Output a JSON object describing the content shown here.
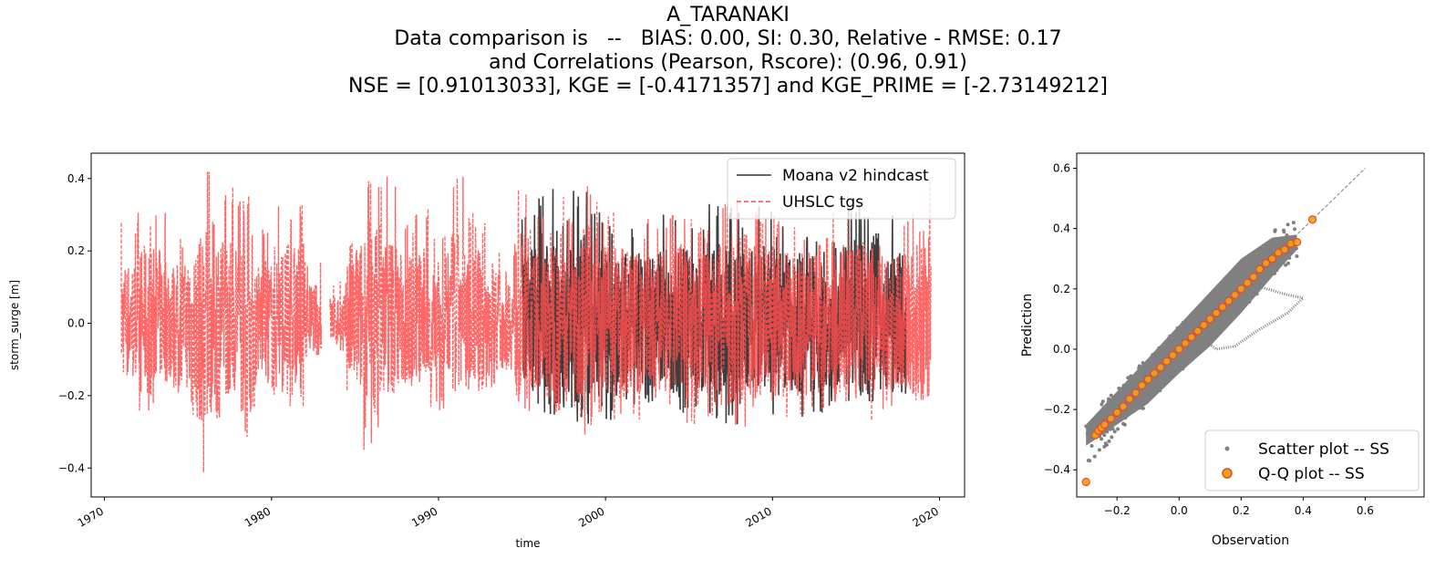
{
  "title": {
    "line1": "A_TARANAKI",
    "line2": "Data comparison is   --   BIAS: 0.00, SI: 0.30, Relative - RMSE: 0.17",
    "line3": "and Correlations (Pearson, Rscore): (0.96, 0.91)",
    "line4": "NSE = [0.91013033], KGE = [-0.4171357] and KGE_PRIME = [-2.73149212]"
  },
  "chart_data": [
    {
      "type": "line",
      "xlabel": "time",
      "ylabel": "storm_surge [m]",
      "xlim": [
        1969.2,
        2021.5
      ],
      "ylim": [
        -0.48,
        0.47
      ],
      "xticks": [
        "1970",
        "1980",
        "1990",
        "2000",
        "2010",
        "2020"
      ],
      "yticks": [
        "−0.4",
        "−0.2",
        "0.0",
        "0.2",
        "0.4"
      ],
      "legend_position": "top-right",
      "series": [
        {
          "name": "Moana v2 hindcast",
          "color": "#333333",
          "linestyle": "solid",
          "x": [
            1995.0,
            1996.0,
            1997.0,
            1998.0,
            1999.0,
            2000.0,
            2001.0,
            2002.0,
            2003.0,
            2004.0,
            2005.0,
            2006.0,
            2007.0,
            2008.0,
            2009.0,
            2010.0,
            2011.0,
            2012.0,
            2013.0,
            2014.0,
            2015.0,
            2016.0,
            2017.0
          ],
          "max": [
            0.3,
            0.38,
            0.3,
            0.37,
            0.31,
            0.27,
            0.27,
            0.28,
            0.31,
            0.3,
            0.27,
            0.33,
            0.34,
            0.3,
            0.33,
            0.28,
            0.26,
            0.26,
            0.34,
            0.36,
            0.33,
            0.25,
            0.32
          ],
          "min": [
            -0.23,
            -0.26,
            -0.24,
            -0.28,
            -0.23,
            -0.27,
            -0.24,
            -0.22,
            -0.23,
            -0.27,
            -0.24,
            -0.27,
            -0.28,
            -0.23,
            -0.24,
            -0.26,
            -0.26,
            -0.27,
            -0.23,
            -0.24,
            -0.27,
            -0.24,
            -0.24
          ]
        },
        {
          "name": "UHSLC tgs",
          "color": "#ff4c4c",
          "linestyle": "dashed",
          "x": [
            1971.0,
            1972.0,
            1973.0,
            1974.0,
            1975.0,
            1976.0,
            1977.0,
            1978.0,
            1979.0,
            1980.0,
            1981.0,
            1982.0,
            1983.5,
            1984.5,
            1985.5,
            1986.5,
            1987.5,
            1988.5,
            1989.5,
            1990.5,
            1991.5,
            1992.5,
            1993.5,
            1994.5,
            1995.5,
            1996.5,
            1997.5,
            1998.5,
            1999.5,
            2000.5,
            2001.5,
            2002.5,
            2003.5,
            2004.5,
            2005.5,
            2006.5,
            2007.5,
            2008.5,
            2009.5,
            2010.5,
            2011.5,
            2012.5,
            2013.5,
            2014.5,
            2015.5,
            2016.5,
            2017.5,
            2018.5
          ],
          "max": [
            0.28,
            0.31,
            0.35,
            0.24,
            0.26,
            0.43,
            0.38,
            0.36,
            0.27,
            0.35,
            0.33,
            0.18,
            0.12,
            0.36,
            0.4,
            0.43,
            0.29,
            0.33,
            0.25,
            0.41,
            0.31,
            0.28,
            0.23,
            0.38,
            0.3,
            0.39,
            0.31,
            0.39,
            0.31,
            0.28,
            0.26,
            0.29,
            0.31,
            0.3,
            0.27,
            0.33,
            0.35,
            0.31,
            0.32,
            0.29,
            0.27,
            0.25,
            0.35,
            0.37,
            0.32,
            0.26,
            0.31,
            0.41
          ],
          "min": [
            -0.16,
            -0.25,
            -0.15,
            -0.2,
            -0.44,
            -0.28,
            -0.2,
            -0.33,
            -0.18,
            -0.2,
            -0.24,
            -0.09,
            -0.08,
            -0.22,
            -0.38,
            -0.18,
            -0.22,
            -0.19,
            -0.24,
            -0.2,
            -0.21,
            -0.19,
            -0.14,
            -0.25,
            -0.21,
            -0.28,
            -0.23,
            -0.32,
            -0.25,
            -0.29,
            -0.27,
            -0.22,
            -0.23,
            -0.28,
            -0.26,
            -0.24,
            -0.29,
            -0.24,
            -0.25,
            -0.26,
            -0.27,
            -0.26,
            -0.24,
            -0.22,
            -0.27,
            -0.24,
            -0.2,
            -0.22
          ]
        }
      ]
    },
    {
      "type": "scatter",
      "xlabel": "Observation",
      "ylabel": "Prediction",
      "xlim": [
        -0.33,
        0.79
      ],
      "ylim": [
        -0.49,
        0.65
      ],
      "xticks": [
        "−0.2",
        "0.0",
        "0.2",
        "0.4",
        "0.6"
      ],
      "yticks": [
        "−0.4",
        "−0.2",
        "0.0",
        "0.2",
        "0.4",
        "0.6"
      ],
      "legend_position": "lower-right",
      "reference_line": {
        "from": [
          -0.3,
          -0.3
        ],
        "to": [
          0.6,
          0.6
        ],
        "color": "#808080",
        "linestyle": "dashed"
      },
      "series": [
        {
          "name": "Scatter plot -- SS",
          "color": "#808080",
          "envelope_upper": [
            [
              -0.3,
              -0.25
            ],
            [
              -0.2,
              -0.14
            ],
            [
              -0.1,
              -0.03
            ],
            [
              0.0,
              0.08
            ],
            [
              0.1,
              0.19
            ],
            [
              0.2,
              0.3
            ],
            [
              0.3,
              0.37
            ],
            [
              0.38,
              0.38
            ]
          ],
          "envelope_lower": [
            [
              -0.3,
              -0.32
            ],
            [
              -0.2,
              -0.25
            ],
            [
              -0.1,
              -0.18
            ],
            [
              0.0,
              -0.08
            ],
            [
              0.1,
              0.01
            ],
            [
              0.2,
              0.12
            ],
            [
              0.3,
              0.24
            ],
            [
              0.38,
              0.33
            ]
          ],
          "loop": [
            [
              0.05,
              0.04
            ],
            [
              0.15,
              0.14
            ],
            [
              0.25,
              0.21
            ],
            [
              0.35,
              0.18
            ],
            [
              0.4,
              0.17
            ],
            [
              0.35,
              0.12
            ],
            [
              0.25,
              0.06
            ],
            [
              0.18,
              0.01
            ],
            [
              0.12,
              0.0
            ],
            [
              0.08,
              0.03
            ],
            [
              0.05,
              0.04
            ]
          ]
        },
        {
          "name": "Q-Q plot -- SS",
          "color": "#f5a00d",
          "edge_color": "#e8482c",
          "x": [
            -0.27,
            -0.26,
            -0.25,
            -0.24,
            -0.22,
            -0.2,
            -0.18,
            -0.16,
            -0.14,
            -0.12,
            -0.1,
            -0.08,
            -0.06,
            -0.04,
            -0.02,
            0.0,
            0.02,
            0.04,
            0.06,
            0.08,
            0.1,
            0.12,
            0.14,
            0.16,
            0.18,
            0.2,
            0.22,
            0.24,
            0.26,
            0.28,
            0.3,
            0.32,
            0.34,
            0.36,
            0.38,
            0.43,
            -0.3
          ],
          "y": [
            -0.285,
            -0.27,
            -0.26,
            -0.25,
            -0.23,
            -0.21,
            -0.19,
            -0.165,
            -0.145,
            -0.12,
            -0.1,
            -0.08,
            -0.06,
            -0.04,
            -0.02,
            0.0,
            0.02,
            0.04,
            0.06,
            0.08,
            0.1,
            0.12,
            0.14,
            0.16,
            0.18,
            0.2,
            0.22,
            0.24,
            0.265,
            0.285,
            0.3,
            0.32,
            0.33,
            0.35,
            0.355,
            0.43,
            -0.44
          ]
        }
      ]
    }
  ]
}
